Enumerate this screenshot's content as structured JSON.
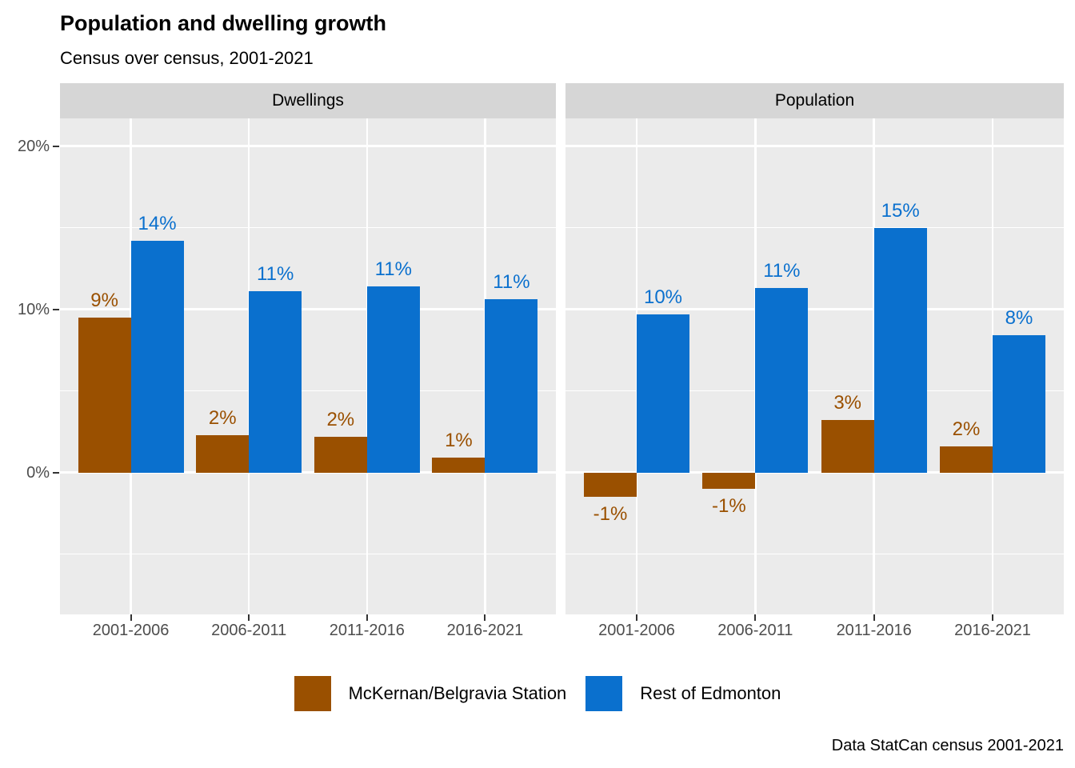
{
  "title": "Population and dwelling growth",
  "subtitle": "Census over census, 2001-2021",
  "caption": "Data StatCan census 2001-2021",
  "colors": {
    "mckernan_brown": "#9a5000",
    "edmonton_blue": "#0a70ce",
    "panel_bg": "#ebebeb",
    "strip_bg": "#d6d6d6",
    "gridline": "#ffffff",
    "axis_text": "#4d4d4d",
    "tick_mark": "#333333"
  },
  "legend": {
    "position": "bottom",
    "items": [
      {
        "label": "McKernan/Belgravia Station",
        "color": "#9a5000"
      },
      {
        "label": "Rest of Edmonton",
        "color": "#0a70ce"
      }
    ]
  },
  "chart_data": {
    "type": "bar",
    "grouping": "dodged",
    "categories": [
      "2001-2006",
      "2006-2011",
      "2011-2016",
      "2016-2021"
    ],
    "facets": [
      {
        "label": "Dwellings",
        "series": [
          {
            "name": "McKernan/Belgravia Station",
            "color": "#9a5000",
            "values": [
              9.5,
              2.3,
              2.2,
              0.9
            ],
            "labels": [
              "9%",
              "2%",
              "2%",
              "1%"
            ]
          },
          {
            "name": "Rest of Edmonton",
            "color": "#0a70ce",
            "values": [
              14.2,
              11.1,
              11.4,
              10.6
            ],
            "labels": [
              "14%",
              "11%",
              "11%",
              "11%"
            ]
          }
        ]
      },
      {
        "label": "Population",
        "series": [
          {
            "name": "McKernan/Belgravia Station",
            "color": "#9a5000",
            "values": [
              -1.5,
              -1.0,
              3.2,
              1.6
            ],
            "labels": [
              "-1%",
              "-1%",
              "3%",
              "2%"
            ]
          },
          {
            "name": "Rest of Edmonton",
            "color": "#0a70ce",
            "values": [
              9.7,
              11.3,
              15.0,
              8.4
            ],
            "labels": [
              "10%",
              "11%",
              "15%",
              "8%"
            ]
          }
        ]
      }
    ],
    "y_axis": {
      "range": [
        -8.7,
        21.7
      ],
      "major_ticks": [
        {
          "value": 0,
          "label": "0%"
        },
        {
          "value": 10,
          "label": "10%"
        },
        {
          "value": 20,
          "label": "20%"
        }
      ],
      "minor_ticks": [
        -5,
        5,
        15
      ],
      "grid": true
    },
    "x_axis": {
      "label": "",
      "tick_labels": [
        "2001-2006",
        "2006-2011",
        "2011-2016",
        "2016-2021"
      ]
    }
  }
}
